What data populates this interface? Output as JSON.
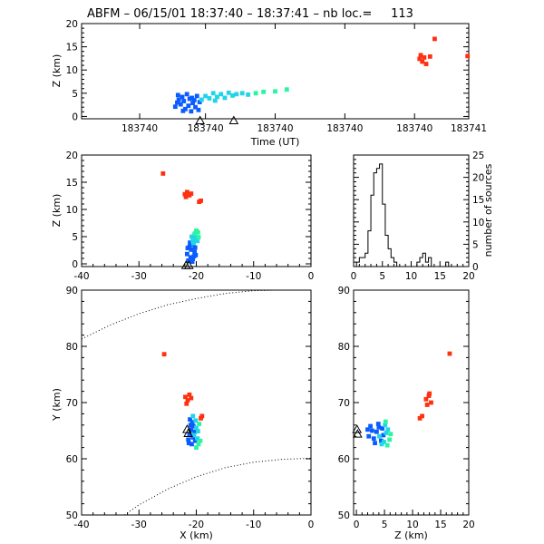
{
  "title": "ABFM – 06/15/01 18:37:40 – 18:37:41 – nb loc.=     113",
  "colors": {
    "early": "#0a5cff",
    "mid": "#21d4e8",
    "late": "#2bf5a0",
    "high": "#ff3010",
    "axis": "#000000"
  },
  "chart_data": [
    {
      "id": "time_height",
      "type": "scatter",
      "xlabel": "Time (UT)",
      "ylabel": "Z (km)",
      "xlim": [
        0,
        1
      ],
      "ylim": [
        -0.5,
        20
      ],
      "xtick_labels": [
        "183740",
        "183740",
        "183740",
        "183740",
        "183740",
        "183741"
      ],
      "ytick_labels": [
        "0",
        "5",
        "10",
        "15",
        "20"
      ],
      "station_markers": [
        0.306,
        0.393
      ],
      "series": [
        {
          "name": "",
          "color_key": "early",
          "points": [
            [
              0.242,
              2.1
            ],
            [
              0.247,
              3.0
            ],
            [
              0.251,
              3.6
            ],
            [
              0.256,
              2.6
            ],
            [
              0.26,
              4.2
            ],
            [
              0.264,
              3.3
            ],
            [
              0.268,
              1.6
            ],
            [
              0.272,
              4.8
            ],
            [
              0.276,
              2.3
            ],
            [
              0.279,
              3.8
            ],
            [
              0.283,
              1.1
            ],
            [
              0.287,
              2.9
            ],
            [
              0.291,
              3.5
            ],
            [
              0.294,
              2.0
            ],
            [
              0.298,
              4.4
            ],
            [
              0.302,
              1.4
            ],
            [
              0.305,
              3.1
            ],
            [
              0.249,
              4.6
            ],
            [
              0.262,
              1.2
            ],
            [
              0.285,
              4.0
            ]
          ]
        },
        {
          "name": "",
          "color_key": "mid",
          "points": [
            [
              0.31,
              3.6
            ],
            [
              0.32,
              4.4
            ],
            [
              0.33,
              3.9
            ],
            [
              0.34,
              5.0
            ],
            [
              0.35,
              4.2
            ],
            [
              0.36,
              4.8
            ],
            [
              0.37,
              4.0
            ],
            [
              0.38,
              5.1
            ],
            [
              0.39,
              4.5
            ],
            [
              0.4,
              4.8
            ],
            [
              0.415,
              5.0
            ],
            [
              0.43,
              4.7
            ],
            [
              0.345,
              3.4
            ]
          ]
        },
        {
          "name": "",
          "color_key": "late",
          "points": [
            [
              0.45,
              5.0
            ],
            [
              0.47,
              5.3
            ],
            [
              0.5,
              5.4
            ],
            [
              0.53,
              5.8
            ]
          ]
        },
        {
          "name": "",
          "color_key": "high",
          "points": [
            [
              0.873,
              12.4
            ],
            [
              0.876,
              13.2
            ],
            [
              0.88,
              11.8
            ],
            [
              0.885,
              12.7
            ],
            [
              0.89,
              11.3
            ],
            [
              0.9,
              12.9
            ],
            [
              0.912,
              16.7
            ],
            [
              0.997,
              13.0
            ]
          ]
        }
      ]
    },
    {
      "id": "x_height",
      "type": "scatter",
      "xlabel": "",
      "ylabel": "Z (km)",
      "xlim": [
        -40,
        0
      ],
      "ylim": [
        -0.5,
        20
      ],
      "xticks": [
        -40,
        -30,
        -20,
        -10,
        0
      ],
      "yticks": [
        0,
        5,
        10,
        15,
        20
      ],
      "station_markers": [
        [
          -21.8,
          -0.2
        ],
        [
          -21.3,
          -0.2
        ]
      ],
      "series": [
        {
          "name": "",
          "color_key": "early",
          "points": [
            [
              -21.4,
              0.6
            ],
            [
              -21.0,
              1.2
            ],
            [
              -20.6,
              0.9
            ],
            [
              -21.6,
              1.8
            ],
            [
              -20.3,
              2.2
            ],
            [
              -20.9,
              2.6
            ],
            [
              -21.2,
              3.1
            ],
            [
              -20.5,
              3.5
            ],
            [
              -20.1,
              1.6
            ],
            [
              -21.5,
              2.9
            ],
            [
              -20.7,
              0.4
            ],
            [
              -20.2,
              3.0
            ],
            [
              -21.1,
              3.9
            ],
            [
              -20.4,
              1.4
            ]
          ]
        },
        {
          "name": "",
          "color_key": "mid",
          "points": [
            [
              -20.6,
              4.2
            ],
            [
              -20.1,
              4.6
            ],
            [
              -20.8,
              5.0
            ],
            [
              -20.3,
              5.4
            ],
            [
              -19.9,
              4.8
            ],
            [
              -20.5,
              3.8
            ],
            [
              -19.8,
              4.2
            ]
          ]
        },
        {
          "name": "",
          "color_key": "late",
          "points": [
            [
              -20.2,
              5.6
            ],
            [
              -19.7,
              5.8
            ],
            [
              -20.0,
              6.1
            ],
            [
              -19.6,
              4.9
            ]
          ]
        },
        {
          "name": "",
          "color_key": "high",
          "points": [
            [
              -25.8,
              16.6
            ],
            [
              -22.0,
              12.8
            ],
            [
              -21.6,
              13.2
            ],
            [
              -21.2,
              12.6
            ],
            [
              -21.8,
              12.3
            ],
            [
              -20.9,
              12.9
            ],
            [
              -19.5,
              11.4
            ],
            [
              -19.2,
              11.6
            ]
          ]
        }
      ]
    },
    {
      "id": "height_histogram",
      "type": "bar",
      "xlabel": "",
      "ylabel": "number of sources",
      "xlim": [
        0,
        20
      ],
      "ylim": [
        0,
        25
      ],
      "xticks": [
        0,
        5,
        10,
        15,
        20
      ],
      "yticks": [
        0,
        5,
        10,
        15,
        20,
        25
      ],
      "bin_width": 0.5,
      "bins_start": [
        0,
        0.5,
        1,
        1.5,
        2,
        2.5,
        3,
        3.5,
        4,
        4.5,
        5,
        5.5,
        6,
        6.5,
        7,
        7.5,
        8,
        8.5,
        9,
        9.5,
        10,
        10.5,
        11,
        11.5,
        12,
        12.5,
        13,
        13.5,
        14,
        14.5,
        15,
        15.5,
        16,
        16.5,
        17,
        17.5,
        18,
        18.5,
        19,
        19.5
      ],
      "values": [
        0,
        1,
        2,
        2,
        3,
        8,
        16,
        21,
        22,
        23,
        14,
        7,
        4,
        2,
        1,
        0,
        0,
        0,
        0,
        0,
        0,
        0,
        1,
        2,
        3,
        1,
        2,
        0,
        0,
        0,
        0,
        0,
        1,
        0,
        0,
        0,
        0,
        0,
        0,
        0
      ]
    },
    {
      "id": "plan_view",
      "type": "scatter",
      "xlabel": "X (km)",
      "ylabel": "Y (km)",
      "xlim": [
        -40,
        0
      ],
      "ylim": [
        50,
        90
      ],
      "xticks": [
        -40,
        -30,
        -20,
        -10,
        0
      ],
      "yticks": [
        50,
        60,
        70,
        80,
        90
      ],
      "station_markers": [
        [
          -21.6,
          65.3
        ],
        [
          -21.4,
          64.6
        ]
      ],
      "range_rings": [
        {
          "points": [
            [
              -40,
              81.3
            ],
            [
              -35,
              83.8
            ],
            [
              -30,
              85.8
            ],
            [
              -25,
              87.4
            ],
            [
              -20,
              88.5
            ],
            [
              -15,
              89.4
            ],
            [
              -10,
              89.9
            ],
            [
              -6,
              90
            ]
          ]
        },
        {
          "points": [
            [
              -32.5,
              50
            ],
            [
              -30,
              51.8
            ],
            [
              -25,
              54.6
            ],
            [
              -20,
              56.8
            ],
            [
              -15,
              58.4
            ],
            [
              -10,
              59.4
            ],
            [
              -5,
              59.9
            ],
            [
              0,
              60.1
            ]
          ]
        }
      ],
      "series": [
        {
          "name": "",
          "color_key": "early",
          "points": [
            [
              -21.2,
              64.4
            ],
            [
              -20.9,
              65.2
            ],
            [
              -20.6,
              63.8
            ],
            [
              -21.0,
              66.0
            ],
            [
              -20.3,
              64.8
            ],
            [
              -21.4,
              63.4
            ],
            [
              -20.8,
              62.6
            ],
            [
              -20.5,
              65.8
            ],
            [
              -21.1,
              67.0
            ],
            [
              -20.2,
              63.2
            ],
            [
              -20.7,
              66.5
            ],
            [
              -21.3,
              62.8
            ]
          ]
        },
        {
          "name": "",
          "color_key": "mid",
          "points": [
            [
              -20.4,
              64.2
            ],
            [
              -20.0,
              65.5
            ],
            [
              -19.8,
              63.6
            ],
            [
              -20.1,
              66.8
            ],
            [
              -19.7,
              64.9
            ],
            [
              -20.6,
              67.6
            ]
          ]
        },
        {
          "name": "",
          "color_key": "late",
          "points": [
            [
              -19.6,
              62.6
            ],
            [
              -19.3,
              63.2
            ],
            [
              -20.0,
              62.0
            ],
            [
              -19.5,
              66.2
            ]
          ]
        },
        {
          "name": "",
          "color_key": "high",
          "points": [
            [
              -25.6,
              78.6
            ],
            [
              -21.9,
              71.0
            ],
            [
              -21.5,
              70.4
            ],
            [
              -21.2,
              71.4
            ],
            [
              -21.7,
              69.8
            ],
            [
              -20.9,
              70.8
            ],
            [
              -19.2,
              67.2
            ],
            [
              -19.0,
              67.6
            ]
          ]
        }
      ]
    },
    {
      "id": "z_y_view",
      "type": "scatter",
      "xlabel": "Z (km)",
      "ylabel": "",
      "xlim": [
        -0.5,
        20
      ],
      "ylim": [
        50,
        90
      ],
      "xticks": [
        0,
        5,
        10,
        15,
        20
      ],
      "yticks": [
        50,
        60,
        70,
        80,
        90
      ],
      "station_markers": [
        [
          0.1,
          65.3
        ],
        [
          0.2,
          64.5
        ]
      ],
      "series": [
        {
          "name": "",
          "color_key": "early",
          "points": [
            [
              2.2,
              64.0
            ],
            [
              2.8,
              65.0
            ],
            [
              3.1,
              63.6
            ],
            [
              3.6,
              64.8
            ],
            [
              4.0,
              65.6
            ],
            [
              4.4,
              63.2
            ],
            [
              2.5,
              65.8
            ],
            [
              3.3,
              62.8
            ],
            [
              4.8,
              64.2
            ],
            [
              2.0,
              65.2
            ],
            [
              3.9,
              66.2
            ],
            [
              4.6,
              65.4
            ]
          ]
        },
        {
          "name": "",
          "color_key": "mid",
          "points": [
            [
              4.1,
              64.0
            ],
            [
              4.9,
              63.0
            ],
            [
              5.3,
              64.6
            ],
            [
              5.1,
              66.0
            ],
            [
              4.5,
              62.6
            ],
            [
              5.6,
              65.2
            ]
          ]
        },
        {
          "name": "",
          "color_key": "late",
          "points": [
            [
              5.5,
              62.4
            ],
            [
              5.9,
              63.4
            ],
            [
              5.2,
              66.6
            ],
            [
              6.1,
              64.4
            ]
          ]
        },
        {
          "name": "",
          "color_key": "high",
          "points": [
            [
              16.6,
              78.7
            ],
            [
              12.4,
              70.6
            ],
            [
              12.9,
              71.2
            ],
            [
              13.3,
              70.0
            ],
            [
              12.6,
              69.6
            ],
            [
              13.0,
              71.6
            ],
            [
              11.3,
              67.2
            ],
            [
              11.7,
              67.6
            ]
          ]
        }
      ]
    }
  ]
}
